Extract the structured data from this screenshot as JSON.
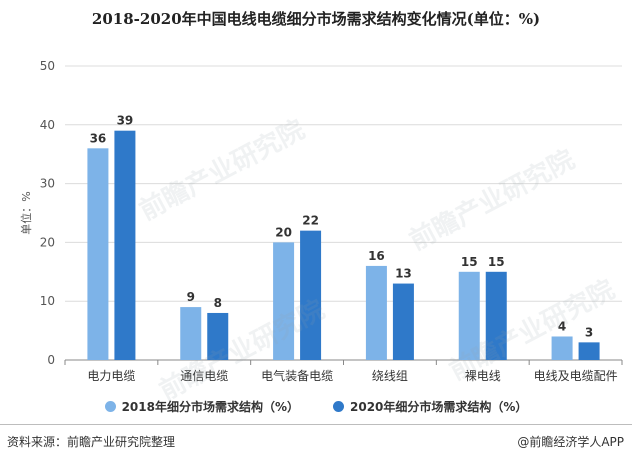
{
  "chart_data": {
    "type": "bar",
    "title": "2018-2020年中国电线电缆细分市场需求结构变化情况(单位：%)",
    "ylabel": "单位：%",
    "xlabel": "",
    "ylim": [
      0,
      50
    ],
    "yticks": [
      0,
      10,
      20,
      30,
      40,
      50
    ],
    "grid": true,
    "legend_position": "bottom",
    "categories": [
      "电力电缆",
      "通信电缆",
      "电气装备电缆",
      "绕线组",
      "裸电线",
      "电线及电缆配件"
    ],
    "series": [
      {
        "name": "2018年细分市场需求结构（%）",
        "values": [
          36,
          9,
          20,
          16,
          15,
          4
        ],
        "color": "#7db3e8"
      },
      {
        "name": "2020年细分市场需求结构（%）",
        "values": [
          39,
          8,
          22,
          13,
          15,
          3
        ],
        "color": "#2f79c9"
      }
    ]
  },
  "footer": {
    "source": "资料来源：前瞻产业研究院整理",
    "credit": "@前瞻经济学人APP"
  },
  "watermark": {
    "text": "前瞻产业研究院"
  }
}
